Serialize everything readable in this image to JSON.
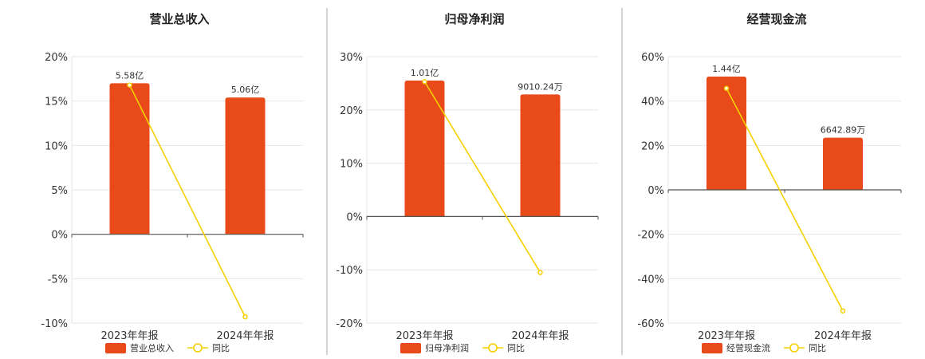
{
  "colors": {
    "bar": "#E84A1A",
    "line": "#F5D000",
    "grid": "#E6E6E6",
    "axis": "#555555",
    "separator": "#AAAAAA"
  },
  "chart_data": [
    {
      "type": "bar",
      "title": "营业总收入",
      "categories": [
        "2023年年报",
        "2024年年报"
      ],
      "series": [
        {
          "name": "营业总收入",
          "type": "bar",
          "values": [
            17,
            15.4
          ],
          "labels": [
            "5.58亿",
            "5.06亿"
          ]
        },
        {
          "name": "同比",
          "type": "line",
          "values": [
            16.8,
            -9.3
          ]
        }
      ],
      "ylim": [
        -10,
        20
      ],
      "yticks": [
        20,
        15,
        10,
        5,
        0,
        -5,
        -10
      ],
      "ytick_labels": [
        "20%",
        "15%",
        "10%",
        "5%",
        "0%",
        "-5%",
        "-10%"
      ],
      "grid": true,
      "legend": "bottom-center"
    },
    {
      "type": "bar",
      "title": "归母净利润",
      "categories": [
        "2023年年报",
        "2024年年报"
      ],
      "series": [
        {
          "name": "归母净利润",
          "type": "bar",
          "values": [
            25.5,
            22.9
          ],
          "labels": [
            "1.01亿",
            "9010.24万"
          ]
        },
        {
          "name": "同比",
          "type": "line",
          "values": [
            25.3,
            -10.5
          ]
        }
      ],
      "ylim": [
        -20,
        30
      ],
      "yticks": [
        30,
        20,
        10,
        0,
        -10,
        -20
      ],
      "ytick_labels": [
        "30%",
        "20%",
        "10%",
        "0%",
        "-10%",
        "-20%"
      ],
      "grid": true,
      "legend": "bottom-center"
    },
    {
      "type": "bar",
      "title": "经营现金流",
      "categories": [
        "2023年年报",
        "2024年年报"
      ],
      "series": [
        {
          "name": "经营现金流",
          "type": "bar",
          "values": [
            51,
            23.5
          ],
          "labels": [
            "1.44亿",
            "6642.89万"
          ]
        },
        {
          "name": "同比",
          "type": "line",
          "values": [
            45.7,
            -54.5
          ]
        }
      ],
      "ylim": [
        -60,
        60
      ],
      "yticks": [
        60,
        40,
        20,
        0,
        -20,
        -40,
        -60
      ],
      "ytick_labels": [
        "60%",
        "40%",
        "20%",
        "0%",
        "-20%",
        "-40%",
        "-60%"
      ],
      "grid": true,
      "legend": "bottom-center"
    }
  ]
}
